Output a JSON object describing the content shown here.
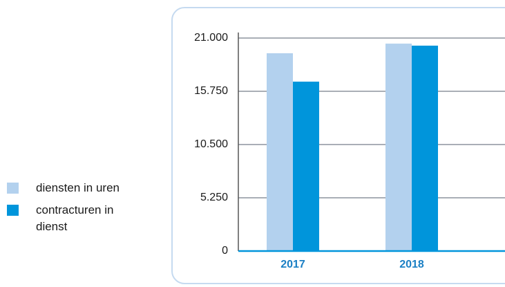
{
  "chart_data": {
    "type": "bar",
    "categories": [
      "2017",
      "2018"
    ],
    "series": [
      {
        "name": "diensten in uren",
        "color": "#b3d1ee",
        "values": [
          19500,
          20450
        ]
      },
      {
        "name": "contracturen in dienst",
        "color": "#0095db",
        "values": [
          16700,
          20250
        ]
      }
    ],
    "ylim": [
      0,
      21000
    ],
    "yticks": [
      0,
      {
        "value": 5250,
        "label": "5.250"
      },
      {
        "value": 10500,
        "label": "10.500"
      },
      {
        "value": 15750,
        "label": "15.750"
      },
      {
        "value": 21000,
        "label": "21.000"
      }
    ],
    "grid": true,
    "legend": "left"
  }
}
